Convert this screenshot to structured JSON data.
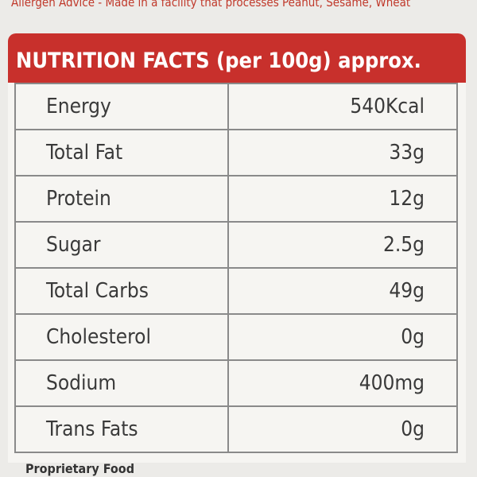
{
  "header": {
    "allergen": "Allergen Advice - Made in a facility that processes Peanut, Sesame, Wheat"
  },
  "table": {
    "title": "NUTRITION FACTS (per 100g) approx.",
    "rows": [
      [
        "Energy",
        "540Kcal"
      ],
      [
        "Total Fat",
        "33g"
      ],
      [
        "Protein",
        "12g"
      ],
      [
        "Sugar",
        "2.5g"
      ],
      [
        "Total Carbs",
        "49g"
      ],
      [
        "Cholesterol",
        "0g"
      ],
      [
        "Sodium",
        "400mg"
      ],
      [
        "Trans Fats",
        "0g"
      ]
    ]
  },
  "footer": {
    "text": "Proprietary Food"
  }
}
